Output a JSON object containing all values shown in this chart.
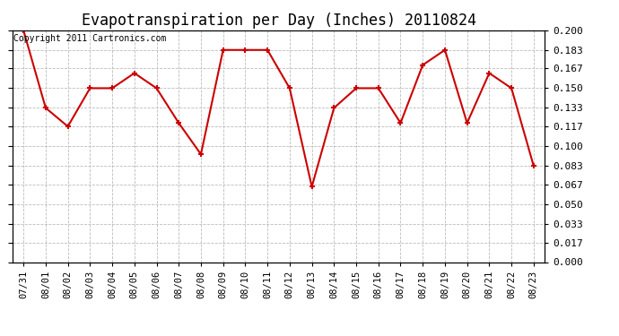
{
  "title": "Evapotranspiration per Day (Inches) 20110824",
  "copyright": "Copyright 2011 Cartronics.com",
  "dates": [
    "07/31",
    "08/01",
    "08/02",
    "08/03",
    "08/04",
    "08/05",
    "08/06",
    "08/07",
    "08/08",
    "08/09",
    "08/10",
    "08/11",
    "08/12",
    "08/13",
    "08/14",
    "08/15",
    "08/16",
    "08/17",
    "08/18",
    "08/19",
    "08/20",
    "08/21",
    "08/22",
    "08/23"
  ],
  "values": [
    0.2,
    0.133,
    0.117,
    0.15,
    0.15,
    0.163,
    0.15,
    0.12,
    0.093,
    0.183,
    0.183,
    0.183,
    0.15,
    0.065,
    0.133,
    0.15,
    0.15,
    0.12,
    0.17,
    0.183,
    0.12,
    0.163,
    0.15,
    0.083
  ],
  "line_color": "#cc0000",
  "marker": "+",
  "marker_size": 5,
  "background_color": "#ffffff",
  "grid_color": "#bbbbbb",
  "ylim": [
    0.0,
    0.2
  ],
  "yticks": [
    0.0,
    0.017,
    0.033,
    0.05,
    0.067,
    0.083,
    0.1,
    0.117,
    0.133,
    0.15,
    0.167,
    0.183,
    0.2
  ],
  "title_fontsize": 12,
  "copyright_fontsize": 7,
  "tick_fontsize": 8,
  "xtick_fontsize": 7.5
}
